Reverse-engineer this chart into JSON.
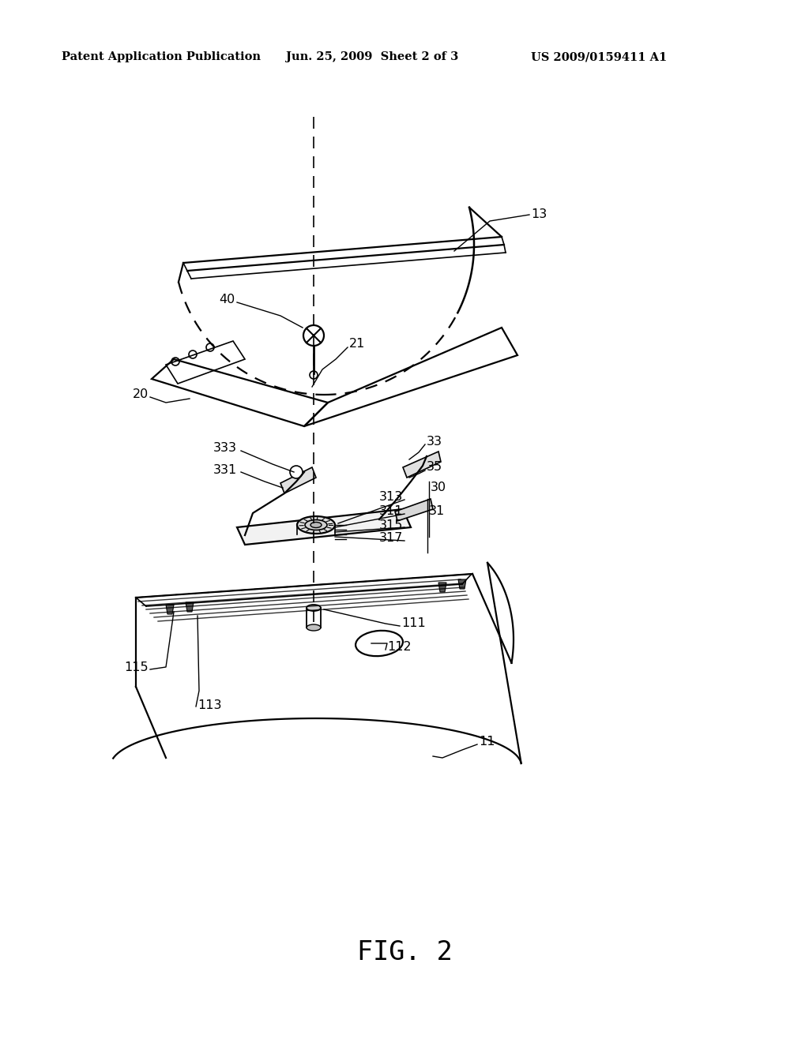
{
  "background_color": "#ffffff",
  "header_left": "Patent Application Publication",
  "header_center": "Jun. 25, 2009  Sheet 2 of 3",
  "header_right": "US 2009/0159411 A1",
  "figure_label": "FIG. 2"
}
